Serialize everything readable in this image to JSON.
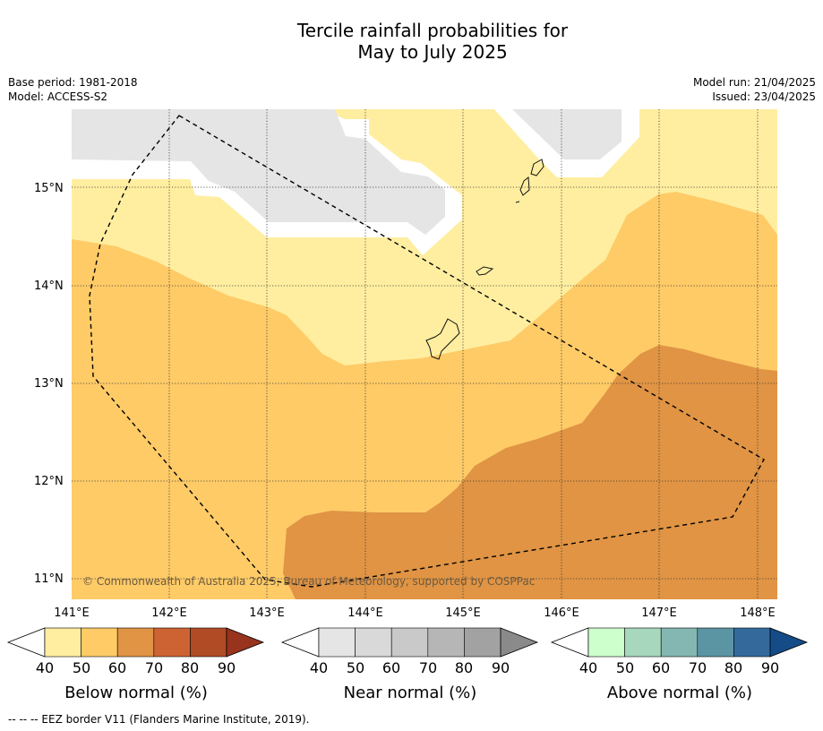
{
  "title_line1": "Tercile rainfall probabilities for",
  "title_line2": "May to July 2025",
  "meta_left": [
    "Base period: 1981-2018",
    "Model: ACCESS-S2"
  ],
  "meta_right": [
    "Model run: 21/04/2025",
    "Issued: 23/04/2025"
  ],
  "map": {
    "lon_labels": [
      "141°E",
      "142°E",
      "143°E",
      "144°E",
      "145°E",
      "146°E",
      "147°E",
      "148°E"
    ],
    "lat_labels": [
      "15°N",
      "14°N",
      "13°N",
      "12°N",
      "11°N"
    ],
    "copyright": "© Commonwealth of Australia 2025, Bureau of Meteorology, supported by COSPPac",
    "colors": {
      "below_40": "#ffeea0",
      "below_50": "#fecb67",
      "below_60": "#e09444",
      "near_40": "#e5e5e5",
      "mask": "#ffffff"
    }
  },
  "colorbars": [
    {
      "title": "Below normal (%)",
      "ticks": [
        "40",
        "50",
        "60",
        "70",
        "80",
        "90"
      ],
      "colors": [
        "#ffeea0",
        "#fecb67",
        "#e09444",
        "#cd6333",
        "#b04b26",
        "#98341e"
      ]
    },
    {
      "title": "Near normal (%)",
      "ticks": [
        "40",
        "50",
        "60",
        "70",
        "80",
        "90"
      ],
      "colors": [
        "#e5e5e5",
        "#d9d9d9",
        "#c9c9c9",
        "#b6b6b6",
        "#a2a2a2",
        "#8a8a8a"
      ]
    },
    {
      "title": "Above normal (%)",
      "ticks": [
        "40",
        "50",
        "60",
        "70",
        "80",
        "90"
      ],
      "colors": [
        "#ccffcc",
        "#a7d7bd",
        "#84b7b2",
        "#5b95a4",
        "#336a9b",
        "#154b87"
      ]
    }
  ],
  "footer": "-- -- -- EEZ border V11 (Flanders Marine Institute, 2019)."
}
